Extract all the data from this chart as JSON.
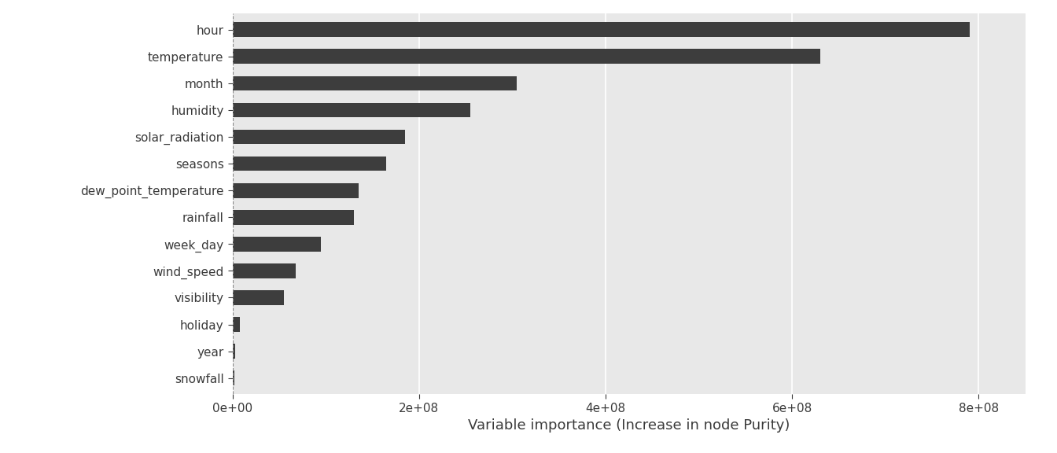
{
  "categories": [
    "snowfall",
    "year",
    "holiday",
    "visibility",
    "wind_speed",
    "week_day",
    "rainfall",
    "dew_point_temperature",
    "seasons",
    "solar_radiation",
    "humidity",
    "month",
    "temperature",
    "hour"
  ],
  "values": [
    2000000,
    3000000,
    8000000,
    55000000,
    68000000,
    95000000,
    130000000,
    135000000,
    165000000,
    185000000,
    255000000,
    305000000,
    630000000,
    790000000
  ],
  "bar_color": "#3d3d3d",
  "plot_background_color": "#e8e8e8",
  "fig_background_color": "#ffffff",
  "xlabel": "Variable importance (Increase in node Purity)",
  "xlim_max": 850000000.0,
  "bar_height": 0.55,
  "grid_color": "#ffffff",
  "tick_label_fontsize": 11,
  "axis_label_fontsize": 13,
  "y_label_color": "#3a3a3a",
  "x_label_color": "#3a3a3a"
}
